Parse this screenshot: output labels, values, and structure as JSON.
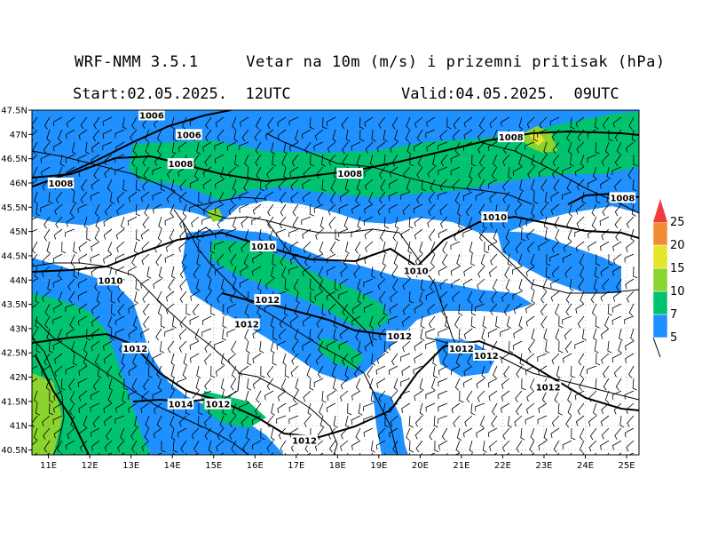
{
  "header": {
    "title": "WRF-NMM 3.5.1     Vetar na 10m (m/s) i prizemni pritisak (hPa)",
    "start": "Start:02.05.2025.  12UTC",
    "valid": "Valid:04.05.2025.  09UTC"
  },
  "axes": {
    "lat_labels": [
      "47.5N",
      "47N",
      "46.5N",
      "46N",
      "45.5N",
      "45N",
      "44.5N",
      "44N",
      "43.5N",
      "43N",
      "42.5N",
      "42N",
      "41.5N",
      "41N",
      "40.5N"
    ],
    "lon_labels": [
      "11E",
      "12E",
      "13E",
      "14E",
      "15E",
      "16E",
      "17E",
      "18E",
      "19E",
      "20E",
      "21E",
      "22E",
      "23E",
      "24E",
      "25E"
    ],
    "lat_range": [
      40.4,
      47.5
    ],
    "lon_range": [
      10.6,
      25.3
    ]
  },
  "wind_speed_scale": {
    "unit": "m/s",
    "levels": [
      "5",
      "7",
      "10",
      "15",
      "20",
      "25"
    ],
    "colors": [
      "#1e90ff",
      "#00c36e",
      "#8bd32d",
      "#e5e52a",
      "#f08c35",
      "#f03c3c"
    ]
  },
  "pressure_labels": [
    {
      "text": "1006",
      "lon": 13.5,
      "lat": 47.4
    },
    {
      "text": "1006",
      "lon": 14.4,
      "lat": 47.0
    },
    {
      "text": "1008",
      "lon": 14.2,
      "lat": 46.4
    },
    {
      "text": "1008",
      "lon": 11.3,
      "lat": 46.0
    },
    {
      "text": "1008",
      "lon": 18.3,
      "lat": 46.2
    },
    {
      "text": "1008",
      "lon": 22.2,
      "lat": 46.95
    },
    {
      "text": "1008",
      "lon": 24.9,
      "lat": 45.7
    },
    {
      "text": "1010",
      "lon": 21.8,
      "lat": 45.3
    },
    {
      "text": "1010",
      "lon": 16.2,
      "lat": 44.7
    },
    {
      "text": "1010",
      "lon": 19.9,
      "lat": 44.2
    },
    {
      "text": "1010",
      "lon": 12.5,
      "lat": 44.0
    },
    {
      "text": "1012",
      "lon": 16.3,
      "lat": 43.6
    },
    {
      "text": "1012",
      "lon": 15.8,
      "lat": 43.1
    },
    {
      "text": "1012",
      "lon": 19.5,
      "lat": 42.85
    },
    {
      "text": "1012",
      "lon": 21.0,
      "lat": 42.6
    },
    {
      "text": "1012",
      "lon": 21.6,
      "lat": 42.45
    },
    {
      "text": "1012",
      "lon": 13.1,
      "lat": 42.6
    },
    {
      "text": "1012",
      "lon": 23.1,
      "lat": 41.8
    },
    {
      "text": "1014",
      "lon": 14.2,
      "lat": 41.45
    },
    {
      "text": "1012",
      "lon": 15.1,
      "lat": 41.45
    },
    {
      "text": "1012",
      "lon": 17.2,
      "lat": 40.7
    }
  ],
  "colors": {
    "land_fill": "#ffffff",
    "frame": "#000000",
    "grid": "#9a9a9a"
  }
}
